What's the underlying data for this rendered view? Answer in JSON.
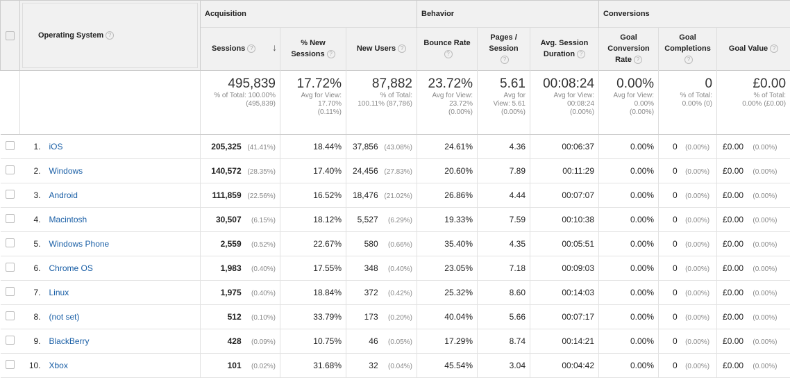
{
  "groups": {
    "acquisition": "Acquisition",
    "behavior": "Behavior",
    "conversions": "Conversions"
  },
  "headers": {
    "os": "Operating System",
    "sessions": "Sessions",
    "new_sessions_1": "% New",
    "new_sessions_2": "Sessions",
    "new_users": "New Users",
    "bounce_rate": "Bounce Rate",
    "pages_1": "Pages /",
    "pages_2": "Session",
    "avg_dur_1": "Avg. Session",
    "avg_dur_2": "Duration",
    "goal_conv_1": "Goal",
    "goal_conv_2": "Conversion",
    "goal_conv_3": "Rate",
    "goal_comp_1": "Goal",
    "goal_comp_2": "Completions",
    "goal_value": "Goal Value"
  },
  "totals": {
    "sessions": "495,839",
    "sessions_sub1": "% of Total: 100.00%",
    "sessions_sub2": "(495,839)",
    "new_sessions": "17.72%",
    "new_sessions_sub1": "Avg for View:",
    "new_sessions_sub2": "17.70%",
    "new_sessions_sub3": "(0.11%)",
    "new_users": "87,882",
    "new_users_sub1": "% of Total:",
    "new_users_sub2": "100.11% (87,786)",
    "bounce": "23.72%",
    "bounce_sub1": "Avg for View:",
    "bounce_sub2": "23.72%",
    "bounce_sub3": "(0.00%)",
    "pages": "5.61",
    "pages_sub1": "Avg for",
    "pages_sub2": "View: 5.61",
    "pages_sub3": "(0.00%)",
    "duration": "00:08:24",
    "duration_sub1": "Avg for View:",
    "duration_sub2": "00:08:24",
    "duration_sub3": "(0.00%)",
    "conv": "0.00%",
    "conv_sub1": "Avg for View:",
    "conv_sub2": "0.00%",
    "conv_sub3": "(0.00%)",
    "comp": "0",
    "comp_sub1": "% of Total:",
    "comp_sub2": "0.00% (0)",
    "value": "£0.00",
    "value_sub1": "% of Total:",
    "value_sub2": "0.00% (£0.00)"
  },
  "rows": [
    {
      "n": "1.",
      "os": "iOS",
      "sessions": "205,325",
      "sessions_pct": "(41.41%)",
      "new_sess": "18.44%",
      "new_users": "37,856",
      "new_users_pct": "(43.08%)",
      "bounce": "24.61%",
      "pages": "4.36",
      "dur": "00:06:37",
      "conv": "0.00%",
      "comp": "0",
      "comp_pct": "(0.00%)",
      "value": "£0.00",
      "value_pct": "(0.00%)"
    },
    {
      "n": "2.",
      "os": "Windows",
      "sessions": "140,572",
      "sessions_pct": "(28.35%)",
      "new_sess": "17.40%",
      "new_users": "24,456",
      "new_users_pct": "(27.83%)",
      "bounce": "20.60%",
      "pages": "7.89",
      "dur": "00:11:29",
      "conv": "0.00%",
      "comp": "0",
      "comp_pct": "(0.00%)",
      "value": "£0.00",
      "value_pct": "(0.00%)"
    },
    {
      "n": "3.",
      "os": "Android",
      "sessions": "111,859",
      "sessions_pct": "(22.56%)",
      "new_sess": "16.52%",
      "new_users": "18,476",
      "new_users_pct": "(21.02%)",
      "bounce": "26.86%",
      "pages": "4.44",
      "dur": "00:07:07",
      "conv": "0.00%",
      "comp": "0",
      "comp_pct": "(0.00%)",
      "value": "£0.00",
      "value_pct": "(0.00%)"
    },
    {
      "n": "4.",
      "os": "Macintosh",
      "sessions": "30,507",
      "sessions_pct": "(6.15%)",
      "new_sess": "18.12%",
      "new_users": "5,527",
      "new_users_pct": "(6.29%)",
      "bounce": "19.33%",
      "pages": "7.59",
      "dur": "00:10:38",
      "conv": "0.00%",
      "comp": "0",
      "comp_pct": "(0.00%)",
      "value": "£0.00",
      "value_pct": "(0.00%)"
    },
    {
      "n": "5.",
      "os": "Windows Phone",
      "sessions": "2,559",
      "sessions_pct": "(0.52%)",
      "new_sess": "22.67%",
      "new_users": "580",
      "new_users_pct": "(0.66%)",
      "bounce": "35.40%",
      "pages": "4.35",
      "dur": "00:05:51",
      "conv": "0.00%",
      "comp": "0",
      "comp_pct": "(0.00%)",
      "value": "£0.00",
      "value_pct": "(0.00%)"
    },
    {
      "n": "6.",
      "os": "Chrome OS",
      "sessions": "1,983",
      "sessions_pct": "(0.40%)",
      "new_sess": "17.55%",
      "new_users": "348",
      "new_users_pct": "(0.40%)",
      "bounce": "23.05%",
      "pages": "7.18",
      "dur": "00:09:03",
      "conv": "0.00%",
      "comp": "0",
      "comp_pct": "(0.00%)",
      "value": "£0.00",
      "value_pct": "(0.00%)"
    },
    {
      "n": "7.",
      "os": "Linux",
      "sessions": "1,975",
      "sessions_pct": "(0.40%)",
      "new_sess": "18.84%",
      "new_users": "372",
      "new_users_pct": "(0.42%)",
      "bounce": "25.32%",
      "pages": "8.60",
      "dur": "00:14:03",
      "conv": "0.00%",
      "comp": "0",
      "comp_pct": "(0.00%)",
      "value": "£0.00",
      "value_pct": "(0.00%)"
    },
    {
      "n": "8.",
      "os": "(not set)",
      "sessions": "512",
      "sessions_pct": "(0.10%)",
      "new_sess": "33.79%",
      "new_users": "173",
      "new_users_pct": "(0.20%)",
      "bounce": "40.04%",
      "pages": "5.66",
      "dur": "00:07:17",
      "conv": "0.00%",
      "comp": "0",
      "comp_pct": "(0.00%)",
      "value": "£0.00",
      "value_pct": "(0.00%)"
    },
    {
      "n": "9.",
      "os": "BlackBerry",
      "sessions": "428",
      "sessions_pct": "(0.09%)",
      "new_sess": "10.75%",
      "new_users": "46",
      "new_users_pct": "(0.05%)",
      "bounce": "17.29%",
      "pages": "8.74",
      "dur": "00:14:21",
      "conv": "0.00%",
      "comp": "0",
      "comp_pct": "(0.00%)",
      "value": "£0.00",
      "value_pct": "(0.00%)"
    },
    {
      "n": "10.",
      "os": "Xbox",
      "sessions": "101",
      "sessions_pct": "(0.02%)",
      "new_sess": "31.68%",
      "new_users": "32",
      "new_users_pct": "(0.04%)",
      "bounce": "45.54%",
      "pages": "3.04",
      "dur": "00:04:42",
      "conv": "0.00%",
      "comp": "0",
      "comp_pct": "(0.00%)",
      "value": "£0.00",
      "value_pct": "(0.00%)"
    }
  ]
}
